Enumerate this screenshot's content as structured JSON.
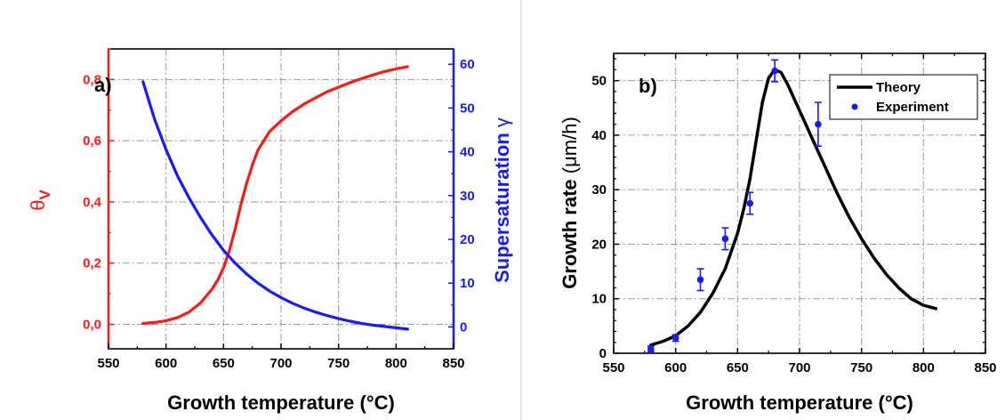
{
  "chart_data": [
    {
      "type": "line",
      "panel_label": "a)",
      "xlabel": "Growth temperature (°C)",
      "ylabel_left": {
        "symbol": "θ",
        "subscript": "V"
      },
      "ylabel_right": {
        "text": "Supersaturation ",
        "symbol": "γ"
      },
      "xlim": [
        550,
        850
      ],
      "xticks": [
        550,
        600,
        650,
        700,
        750,
        800,
        850
      ],
      "ylim_left": [
        -0.08,
        0.9
      ],
      "yticks_left": [
        "0,0",
        "0,2",
        "0,4",
        "0,6",
        "0,8"
      ],
      "yticks_left_values": [
        0,
        0.2,
        0.4,
        0.6,
        0.8
      ],
      "ylim_right": [
        -5,
        63.5
      ],
      "yticks_right": [
        0,
        10,
        20,
        30,
        40,
        50,
        60
      ],
      "grid": true,
      "colors": {
        "left_axis": "#ff1a1a",
        "right_axis": "#1a1aff"
      },
      "series": [
        {
          "axis": "left",
          "color": "#ff1a1a",
          "x": [
            580,
            590,
            600,
            610,
            620,
            630,
            640,
            645,
            650,
            655,
            660,
            665,
            670,
            675,
            680,
            690,
            700,
            710,
            720,
            730,
            740,
            750,
            760,
            770,
            780,
            790,
            800,
            810
          ],
          "y": [
            0.003,
            0.006,
            0.012,
            0.022,
            0.04,
            0.07,
            0.115,
            0.145,
            0.185,
            0.24,
            0.31,
            0.39,
            0.46,
            0.52,
            0.57,
            0.63,
            0.665,
            0.695,
            0.72,
            0.74,
            0.76,
            0.775,
            0.79,
            0.803,
            0.815,
            0.826,
            0.835,
            0.842
          ]
        },
        {
          "axis": "right",
          "color": "#1a1aff",
          "x": [
            580,
            590,
            600,
            610,
            620,
            630,
            640,
            650,
            660,
            670,
            680,
            690,
            700,
            710,
            720,
            730,
            740,
            750,
            760,
            770,
            780,
            790,
            800,
            810
          ],
          "y": [
            56,
            47.5,
            40.5,
            34.5,
            29.5,
            25,
            21,
            17.5,
            14.6,
            12.1,
            10,
            8.2,
            6.7,
            5.4,
            4.3,
            3.4,
            2.6,
            1.9,
            1.3,
            0.8,
            0.4,
            0.1,
            -0.2,
            -0.5
          ]
        }
      ]
    },
    {
      "type": "line",
      "panel_label": "b)",
      "xlabel": "Growth temperature (°C)",
      "ylabel": {
        "text": "Growth rate ",
        "unit": "(μm/h)"
      },
      "xlim": [
        550,
        850
      ],
      "xticks": [
        550,
        600,
        650,
        700,
        750,
        800,
        850
      ],
      "ylim": [
        0,
        55
      ],
      "yticks": [
        0,
        10,
        20,
        30,
        40,
        50
      ],
      "grid": true,
      "legend_position": "top-right",
      "series": [
        {
          "name": "Theory",
          "type": "line",
          "color": "#000000",
          "x": [
            580,
            590,
            600,
            610,
            620,
            630,
            640,
            650,
            655,
            660,
            665,
            670,
            675,
            680,
            685,
            690,
            700,
            710,
            720,
            730,
            740,
            750,
            760,
            770,
            780,
            790,
            800,
            810
          ],
          "y": [
            1.5,
            2.2,
            3.2,
            5,
            7.5,
            11,
            15.5,
            22,
            26.5,
            32,
            39,
            46,
            50.5,
            52,
            51.5,
            49.5,
            44.5,
            39.5,
            34.5,
            29.5,
            25,
            21,
            17.5,
            14.5,
            12,
            10,
            8.8,
            8.2
          ]
        },
        {
          "name": "Experiment",
          "type": "scatter",
          "color": "#1a1aff",
          "x": [
            580,
            600,
            620,
            640,
            660,
            680,
            715
          ],
          "y": [
            0.8,
            2.8,
            13.5,
            21,
            27.5,
            51.8,
            42
          ],
          "err": [
            0.5,
            0.6,
            2,
            2,
            2,
            2,
            4
          ]
        }
      ]
    }
  ]
}
